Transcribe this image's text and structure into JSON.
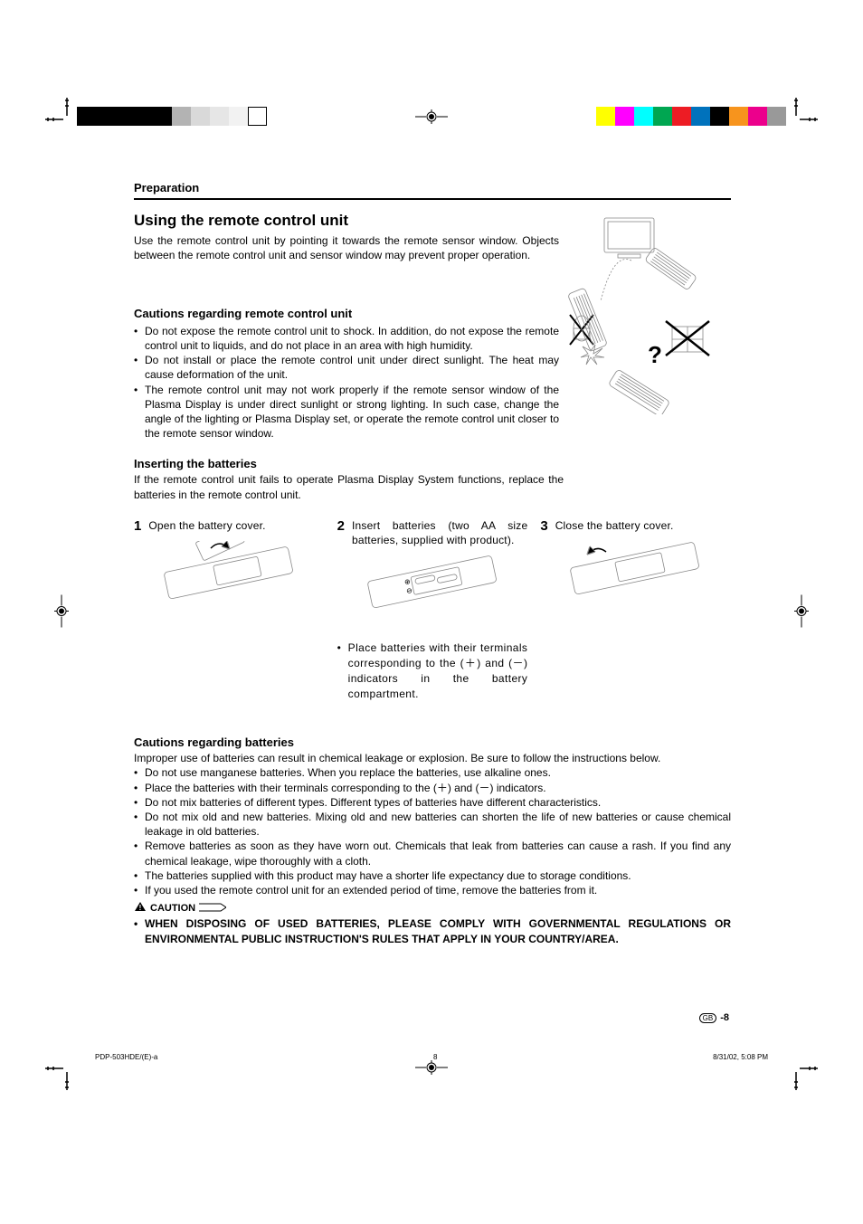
{
  "colorbar_left": [
    "#000000",
    "#000000",
    "#000000",
    "#000000",
    "#000000",
    "#b3b3b3",
    "#d9d9d9",
    "#e6e6e6",
    "#f2f2f2",
    "#ffffff"
  ],
  "colorbar_right": [
    "#ffff00",
    "#ff00ff",
    "#00ffff",
    "#00a651",
    "#ed1c24",
    "#0072bc",
    "#000000",
    "#f7941d",
    "#ec008c",
    "#999999"
  ],
  "section_header": "Preparation",
  "main_title": "Using the remote control unit",
  "intro": "Use the remote control unit by pointing it towards the remote sensor window. Objects between the remote control unit and sensor window may prevent proper operation.",
  "cautions_remote_heading": "Cautions regarding remote control unit",
  "cautions_remote": [
    "Do not expose the remote control unit to shock. In addition, do not expose the remote control unit to liquids, and do not place in an area with high humidity.",
    "Do not install or place the remote control unit under direct sunlight. The heat may cause deformation of the unit.",
    "The remote control unit may not work properly if the remote sensor window of the Plasma Display is under direct sunlight or strong lighting. In such case, change the angle of the lighting or Plasma Display set, or operate the remote control unit closer to the remote sensor window."
  ],
  "inserting_heading": "Inserting the batteries",
  "inserting_text": "If the remote control unit fails to operate Plasma Display System functions, replace the batteries in the remote control unit.",
  "steps": [
    {
      "num": "1",
      "text": "Open the battery cover."
    },
    {
      "num": "2",
      "text": "Insert batteries (two AA size batteries, supplied with product)."
    },
    {
      "num": "3",
      "text": "Close the battery cover."
    }
  ],
  "step2_note": "Place batteries with their terminals corresponding to the (＋) and (－) indicators in the battery compartment.",
  "cautions_batt_heading": "Cautions regarding batteries",
  "cautions_batt_intro": "Improper use of batteries can result in chemical leakage or explosion. Be sure to follow the instructions below.",
  "cautions_batt": [
    "Do not use manganese batteries. When you replace the batteries, use alkaline ones.",
    "Place the batteries with their terminals corresponding to the (＋) and (－) indicators.",
    "Do not mix batteries of different types. Different types of batteries have different characteristics.",
    "Do not mix old and new batteries. Mixing old and new batteries can shorten the life of new batteries or cause chemical leakage in old batteries.",
    "Remove batteries as soon as they have worn out. Chemicals that leak from batteries can cause a rash. If you find any chemical leakage, wipe thoroughly with a cloth.",
    "The batteries supplied with this product may have a shorter life expectancy due to storage conditions.",
    "If you used the remote control unit for an extended period of time, remove the batteries from it."
  ],
  "caution_label": "CAUTION",
  "caution_disposal": "WHEN DISPOSING OF USED BATTERIES, PLEASE COMPLY WITH GOVERNMENTAL REGULATIONS OR ENVIRONMENTAL PUBLIC INSTRUCTION'S RULES THAT APPLY IN YOUR COUNTRY/AREA.",
  "page_gb": "GB",
  "page_num": "-8",
  "footer_left": "PDP-503HDE/(E)-a",
  "footer_mid": "8",
  "footer_right": "8/31/02, 5:08 PM"
}
